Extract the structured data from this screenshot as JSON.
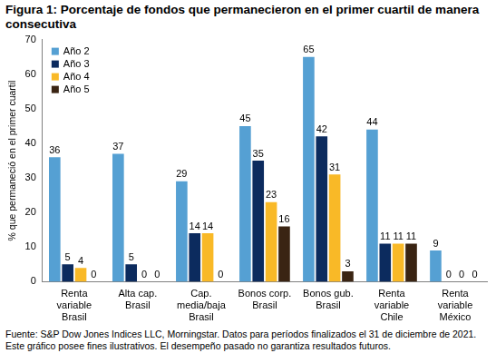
{
  "chart_data": {
    "type": "bar",
    "title": "Figura 1: Porcentaje de fondos que permanecieron en el primer cuartil de manera consecutiva",
    "ylabel": "% que permaneció en el primer cuartil",
    "source": "Fuente: S&P Dow Jones Indices LLC, Morningstar. Datos para períodos finalizados el 31 de diciembre de 2021. Este gráfico posee fines ilustrativos. El desempeño pasado no garantiza resultados futuros.",
    "categories": [
      [
        "Renta",
        "variable",
        "Brasil"
      ],
      [
        "Alta cap.",
        "Brasil"
      ],
      [
        "Cap.",
        "media/baja",
        "Brasil"
      ],
      [
        "Bonos corp.",
        "Brasil"
      ],
      [
        "Bonos gub.",
        "Brasil"
      ],
      [
        "Renta",
        "variable",
        "Chile"
      ],
      [
        "Renta",
        "variable",
        "México"
      ]
    ],
    "series": [
      {
        "name": "Año 2",
        "color": "#55a0d3",
        "values": [
          36,
          37,
          29,
          45,
          65,
          44,
          9
        ]
      },
      {
        "name": "Año 3",
        "color": "#0c2b5e",
        "values": [
          5,
          5,
          14,
          35,
          42,
          11,
          0
        ]
      },
      {
        "name": "Año 4",
        "color": "#f9b927",
        "values": [
          4,
          0,
          14,
          23,
          31,
          11,
          0
        ]
      },
      {
        "name": "Año 5",
        "color": "#3a2413",
        "values": [
          0,
          0,
          0,
          16,
          3,
          11,
          0
        ]
      }
    ],
    "ylim": [
      0,
      70
    ],
    "yticks": [
      0,
      10,
      20,
      30,
      40,
      50,
      60,
      70
    ],
    "grid": false,
    "legend": "top-left",
    "data_labels": true
  }
}
